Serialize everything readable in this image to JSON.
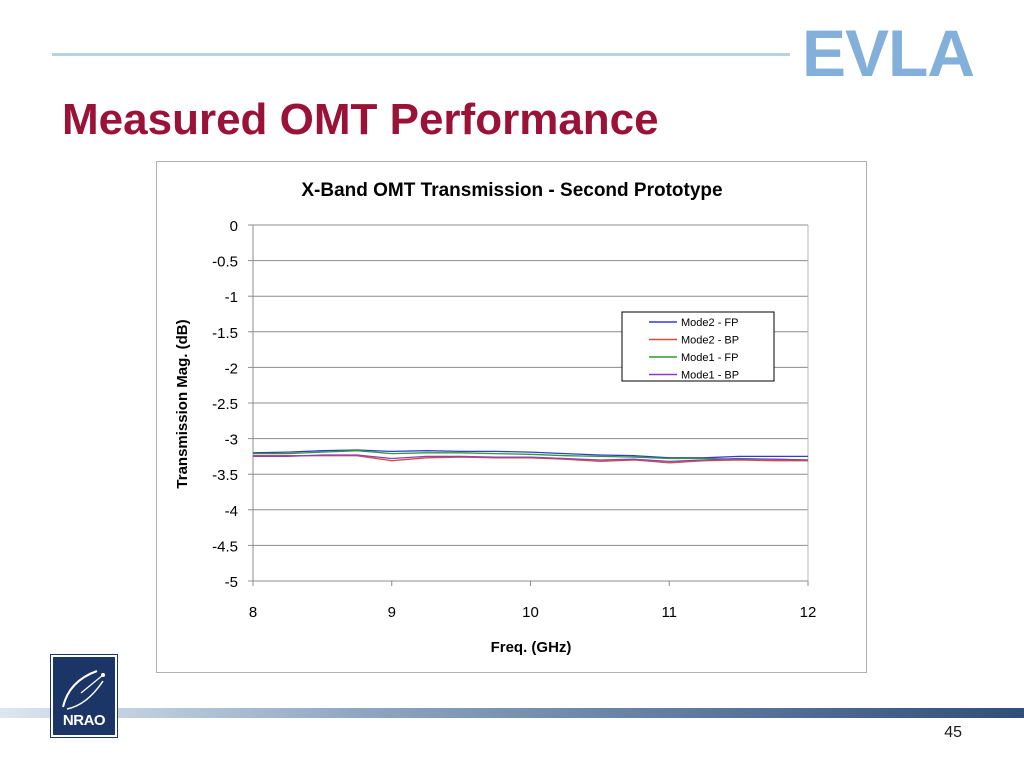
{
  "slide": {
    "brand": "EVLA",
    "title": "Measured OMT Performance",
    "logo_text": "NRAO",
    "page_number": "45"
  },
  "colors": {
    "title": "#9b1238",
    "brand": "#6ea3d4",
    "series": [
      "#2e3fd0",
      "#d0503c",
      "#2e9a34",
      "#8a3fc7"
    ]
  },
  "chart_data": {
    "type": "line",
    "title": "X-Band OMT Transmission - Second Prototype",
    "xlabel": "Freq. (GHz)",
    "ylabel": "Transmission Mag. (dB)",
    "xlim": [
      8,
      12
    ],
    "ylim": [
      -5,
      0
    ],
    "xticks": [
      8,
      9,
      10,
      11,
      12
    ],
    "yticks": [
      0,
      -0.5,
      -1,
      -1.5,
      -2,
      -2.5,
      -3,
      -3.5,
      -4,
      -4.5,
      -5
    ],
    "ytick_labels": [
      "0",
      "-0.5",
      "-1",
      "-1.5",
      "-2",
      "-2.5",
      "-3",
      "-3.5",
      "-4",
      "-4.5",
      "-5"
    ],
    "xtick_labels": [
      "8",
      "9",
      "10",
      "11",
      "12"
    ],
    "grid": "horizontal",
    "legend_position": "upper-right",
    "x": [
      8.0,
      8.25,
      8.5,
      8.75,
      9.0,
      9.25,
      9.5,
      9.75,
      10.0,
      10.25,
      10.5,
      10.75,
      11.0,
      11.25,
      11.5,
      11.75,
      12.0
    ],
    "series": [
      {
        "name": "Mode2 - FP",
        "values": [
          -3.2,
          -3.19,
          -3.17,
          -3.16,
          -3.18,
          -3.17,
          -3.18,
          -3.18,
          -3.19,
          -3.21,
          -3.23,
          -3.24,
          -3.27,
          -3.27,
          -3.25,
          -3.25,
          -3.25
        ]
      },
      {
        "name": "Mode2 - BP",
        "values": [
          -3.24,
          -3.24,
          -3.24,
          -3.24,
          -3.31,
          -3.27,
          -3.26,
          -3.27,
          -3.27,
          -3.29,
          -3.32,
          -3.3,
          -3.34,
          -3.31,
          -3.3,
          -3.31,
          -3.31
        ]
      },
      {
        "name": "Mode1 - FP",
        "values": [
          -3.21,
          -3.21,
          -3.19,
          -3.17,
          -3.21,
          -3.2,
          -3.2,
          -3.21,
          -3.22,
          -3.24,
          -3.25,
          -3.26,
          -3.28,
          -3.28,
          -3.29,
          -3.29,
          -3.3
        ]
      },
      {
        "name": "Mode1 - BP",
        "values": [
          -3.25,
          -3.25,
          -3.23,
          -3.23,
          -3.28,
          -3.25,
          -3.25,
          -3.26,
          -3.26,
          -3.28,
          -3.3,
          -3.29,
          -3.32,
          -3.3,
          -3.28,
          -3.29,
          -3.3
        ]
      }
    ]
  }
}
